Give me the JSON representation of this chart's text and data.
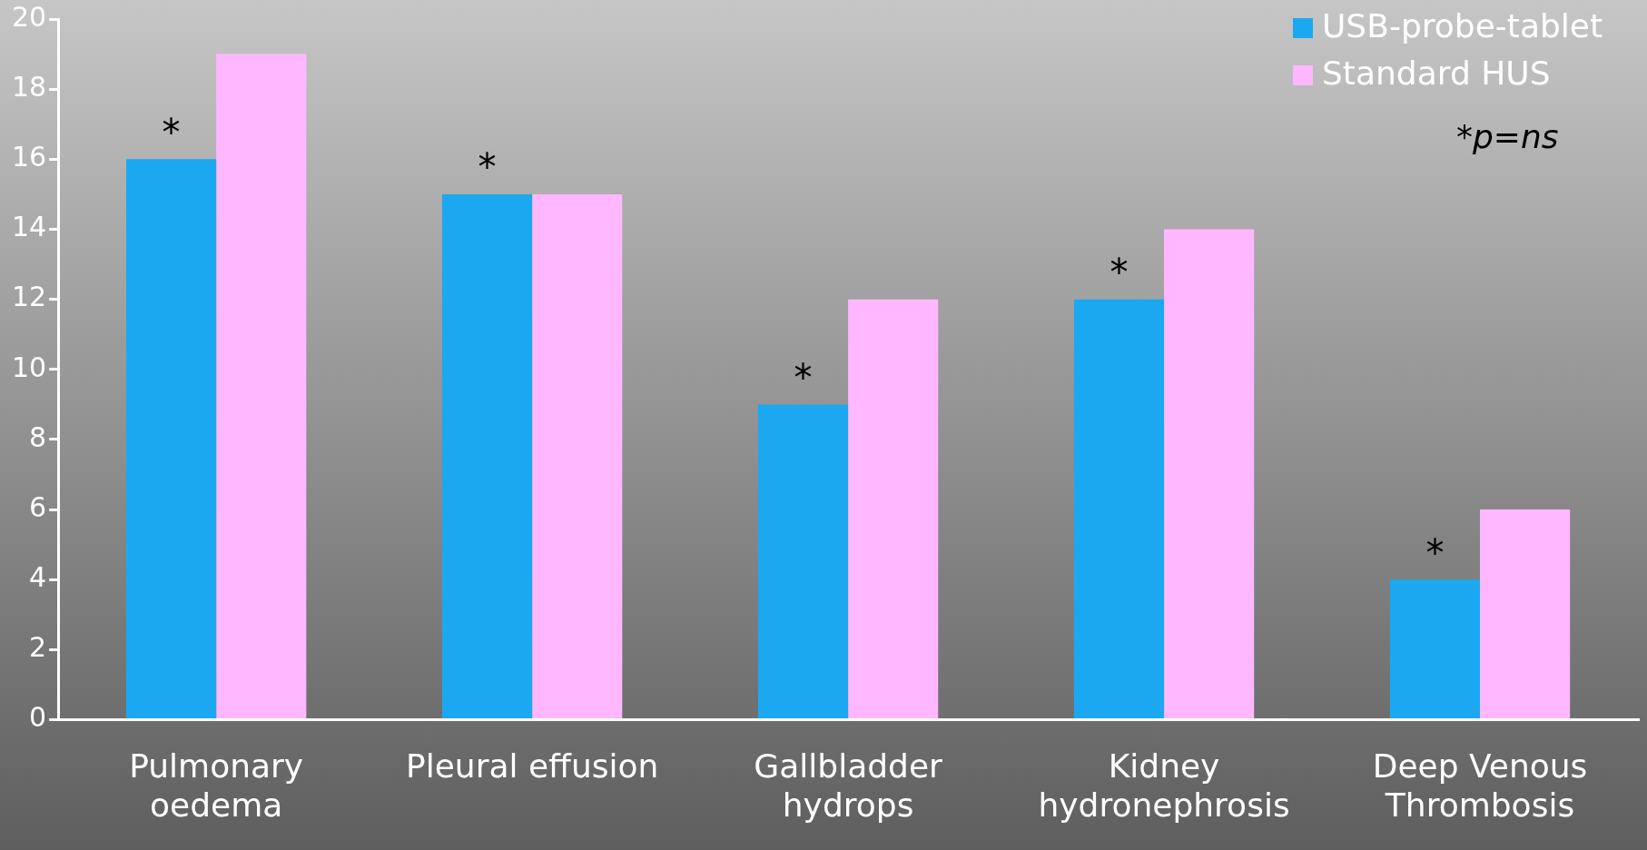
{
  "chart_data": {
    "type": "bar",
    "categories": [
      "Pulmonary oedema",
      "Pleural effusion",
      "Gallbladder hydrops",
      "Kidney hydronephrosis",
      "Deep Venous Thrombosis"
    ],
    "series": [
      {
        "name": "USB-probe-tablet",
        "color": "#1ca8f0",
        "values": [
          16,
          15,
          9,
          12,
          4
        ],
        "value_labels": [
          "*",
          "*",
          "*",
          "*",
          "*"
        ]
      },
      {
        "name": "Standard HUS",
        "color": "#ffb8ff",
        "values": [
          19,
          15,
          12,
          14,
          6
        ]
      }
    ],
    "ylim": [
      0,
      20
    ],
    "yticks": [
      0,
      2,
      4,
      6,
      8,
      10,
      12,
      14,
      16,
      18,
      20
    ],
    "grid": false,
    "legend": "top right",
    "annotations": [
      "*p=ns"
    ]
  }
}
